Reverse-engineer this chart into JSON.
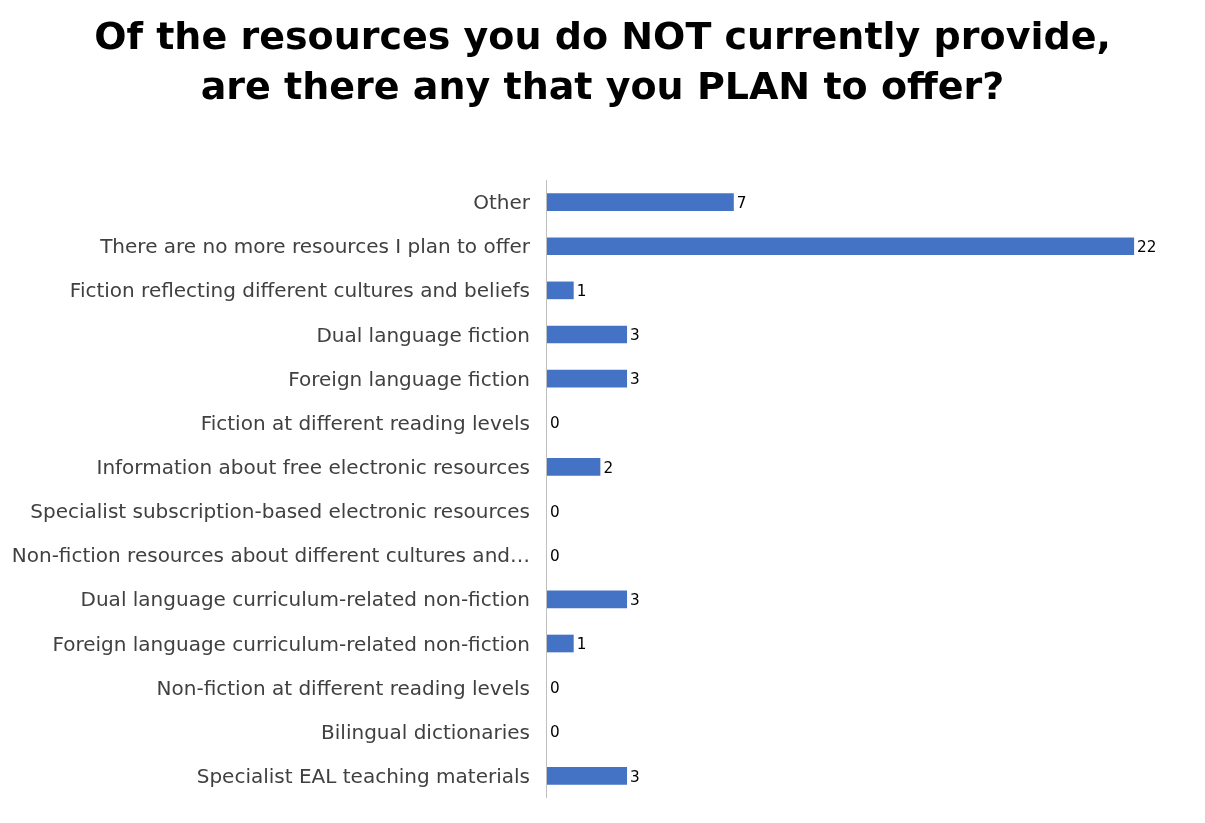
{
  "chart_data": {
    "type": "bar",
    "orientation": "horizontal",
    "title": "Of the resources you do NOT currently provide,\nare there any that you PLAN to offer?",
    "categories": [
      "Other",
      "There are no more resources I plan to offer",
      "Fiction reflecting different cultures and beliefs",
      "Dual language fiction",
      "Foreign language fiction",
      "Fiction at different reading levels",
      "Information about free electronic resources",
      "Specialist subscription-based electronic resources",
      "Non-fiction resources about different cultures and…",
      "Dual language curriculum-related non-fiction",
      "Foreign language curriculum-related non-fiction",
      "Non-fiction at different reading levels",
      "Bilingual dictionaries",
      "Specialist EAL teaching materials"
    ],
    "values": [
      7,
      22,
      1,
      3,
      3,
      0,
      2,
      0,
      0,
      3,
      1,
      0,
      0,
      3
    ],
    "color": "#4472c4",
    "data_labels": true,
    "legend": false,
    "tick_labels": "y"
  }
}
